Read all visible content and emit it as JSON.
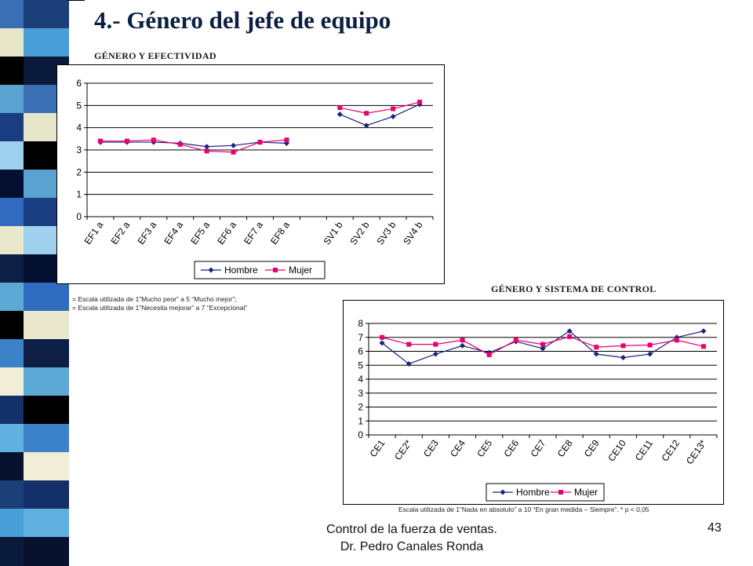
{
  "slide": {
    "title": "4.- Género del jefe de equipo",
    "footer_line1": "Control de la fuerza de ventas.",
    "footer_line2": "Dr. Pedro Canales Ronda",
    "page_number": "43"
  },
  "decor": {
    "stripe_colors": [
      "#1c3f7a",
      "#4a9fd8",
      "#0a1a3a",
      "#3a6fb4",
      "#e8e6c8",
      "#000000",
      "#5aa3d0",
      "#1a3c80",
      "#9fd0ee",
      "#041030",
      "#2f6cc0",
      "#e9e7cc",
      "#0d1f45",
      "#5da9d6",
      "#000000",
      "#3b82c9",
      "#f0eed6",
      "#14306a",
      "#60b0e0",
      "#06122e"
    ]
  },
  "notes": {
    "effectiveness_1": "= Escala utilizada de 1”Mucho peor” a 5 “Mucho mejor”;",
    "effectiveness_2": "=  Escala utilizada de 1”Necesita mejorar” a 7 “Excepcional”",
    "control": "Escala utilizada de 1”Nada en absoluto” a 10 “En gran medida – Siempre”. * p < 0,05"
  },
  "chart_data": [
    {
      "type": "line",
      "title": "GÉNERO Y EFECTIVIDAD",
      "categories": [
        "EF1 a",
        "EF2 a",
        "EF3 a",
        "EF4 a",
        "EF5 a",
        "EF6 a",
        "EF7 a",
        "EF8 a",
        "",
        "SV1 b",
        "SV2 b",
        "SV3 b",
        "SV4 b"
      ],
      "ylim": [
        0,
        6
      ],
      "yticks": [
        "0",
        "1",
        "2",
        "3",
        "4",
        "5",
        "6"
      ],
      "grid": true,
      "legend": "bottom",
      "series": [
        {
          "name": "Hombre",
          "color": "#1a237e",
          "marker": "diamond",
          "segments": [
            [
              3.35,
              3.35,
              3.35,
              3.3,
              3.15,
              3.2,
              3.35,
              3.3
            ],
            [
              4.6,
              4.1,
              4.5,
              5.05
            ]
          ]
        },
        {
          "name": "Mujer",
          "color": "#e6006e",
          "marker": "square",
          "segments": [
            [
              3.4,
              3.4,
              3.45,
              3.25,
              2.95,
              2.9,
              3.35,
              3.45
            ],
            [
              4.9,
              4.65,
              4.85,
              5.15
            ]
          ]
        }
      ]
    },
    {
      "type": "line",
      "title": "GÉNERO Y SISTEMA DE CONTROL",
      "categories": [
        "CE1",
        "CE2*",
        "CE3",
        "CE4",
        "CE5",
        "CE6",
        "CE7",
        "CE8",
        "CE9",
        "CE10",
        "CE11",
        "CE12",
        "CE13*"
      ],
      "ylim": [
        0,
        8
      ],
      "yticks": [
        "0",
        "1",
        "2",
        "3",
        "4",
        "5",
        "6",
        "7",
        "8"
      ],
      "grid": true,
      "legend": "bottom",
      "series": [
        {
          "name": "Hombre",
          "color": "#1a237e",
          "marker": "diamond",
          "values": [
            6.6,
            5.1,
            5.8,
            6.4,
            5.9,
            6.7,
            6.2,
            7.45,
            5.8,
            5.55,
            5.8,
            7.0,
            7.45
          ]
        },
        {
          "name": "Mujer",
          "color": "#e6006e",
          "marker": "square",
          "values": [
            7.0,
            6.5,
            6.5,
            6.8,
            5.75,
            6.8,
            6.5,
            7.05,
            6.3,
            6.4,
            6.45,
            6.8,
            6.35
          ]
        }
      ]
    }
  ]
}
